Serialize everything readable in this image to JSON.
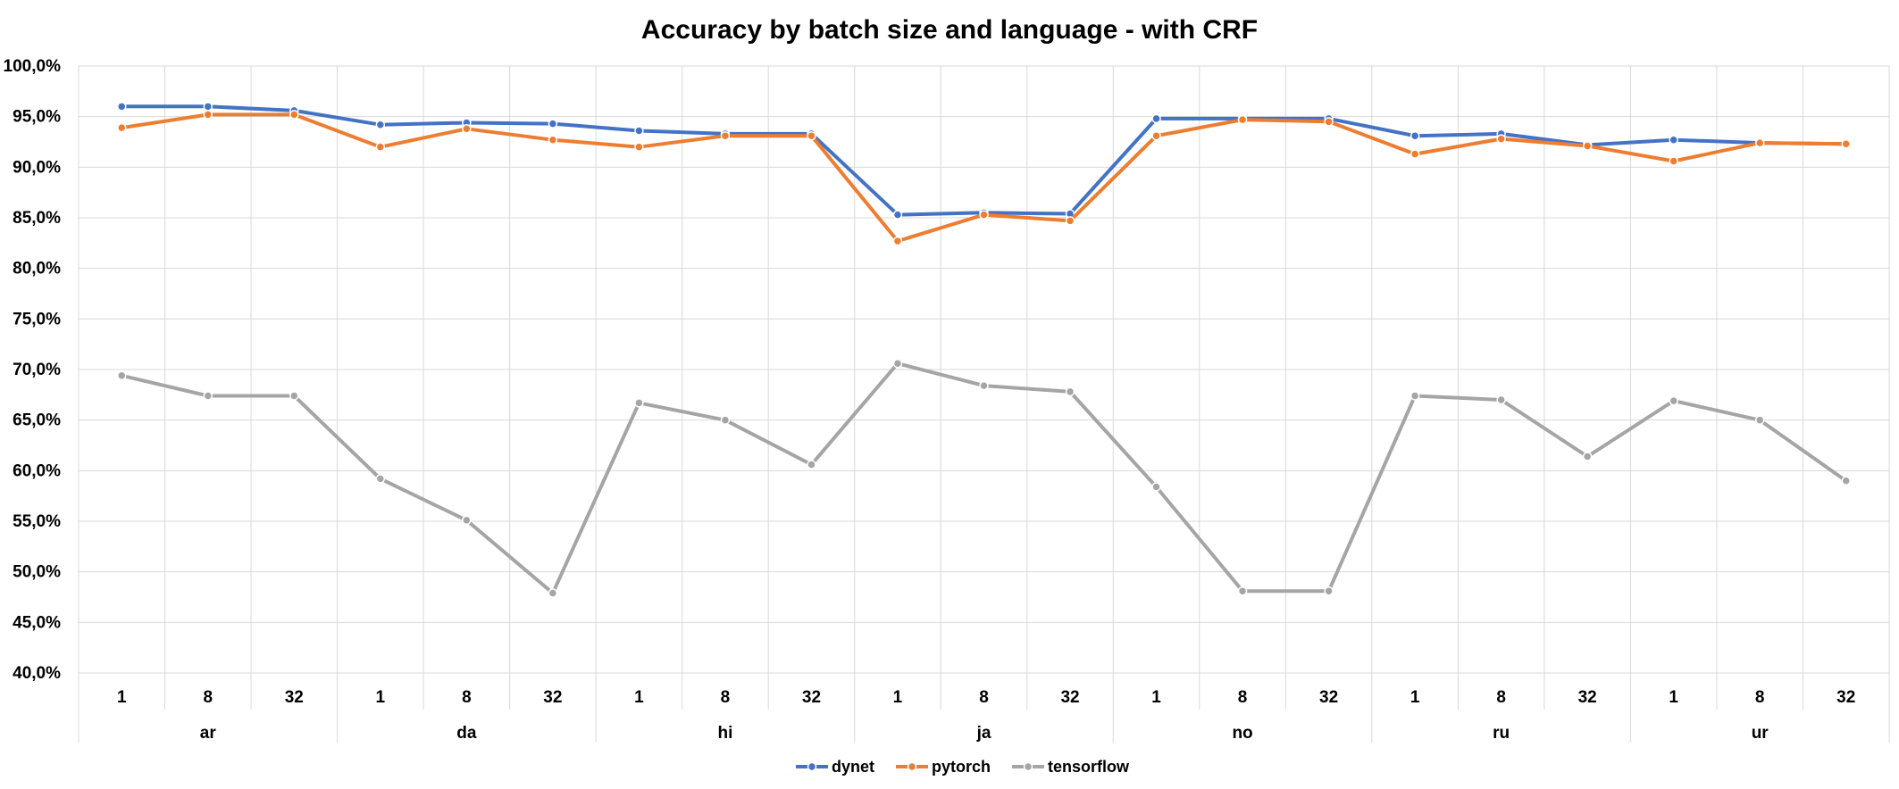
{
  "chart_data": {
    "type": "line",
    "title": "Accuracy by batch size and language - with CRF",
    "xlabel": "",
    "ylabel": "",
    "ylim": [
      40,
      100
    ],
    "y_ticks": [
      "40,0%",
      "45,0%",
      "50,0%",
      "55,0%",
      "60,0%",
      "65,0%",
      "70,0%",
      "75,0%",
      "80,0%",
      "85,0%",
      "90,0%",
      "95,0%",
      "100,0%"
    ],
    "groups": [
      "ar",
      "da",
      "hi",
      "ja",
      "no",
      "ru",
      "ur"
    ],
    "batch_sizes": [
      "1",
      "8",
      "32"
    ],
    "grid": true,
    "legend_position": "bottom",
    "series": [
      {
        "name": "dynet",
        "color": "#4472C4",
        "values": [
          96.0,
          96.0,
          95.6,
          94.2,
          94.4,
          94.3,
          93.6,
          93.3,
          93.3,
          85.3,
          85.5,
          85.4,
          94.8,
          94.8,
          94.8,
          93.1,
          93.3,
          92.2,
          92.7,
          92.4,
          92.3
        ]
      },
      {
        "name": "pytorch",
        "color": "#ED7D31",
        "values": [
          93.9,
          95.2,
          95.2,
          92.0,
          93.8,
          92.7,
          92.0,
          93.1,
          93.1,
          82.7,
          85.3,
          84.7,
          93.1,
          94.7,
          94.5,
          91.3,
          92.8,
          92.1,
          90.6,
          92.4,
          92.3
        ]
      },
      {
        "name": "tensorflow",
        "color": "#A5A5A5",
        "values": [
          69.4,
          67.4,
          67.4,
          59.2,
          55.1,
          47.9,
          66.7,
          65.0,
          60.6,
          70.6,
          68.4,
          67.8,
          58.4,
          48.1,
          48.1,
          67.4,
          67.0,
          61.4,
          66.9,
          65.0,
          59.0
        ]
      }
    ]
  }
}
